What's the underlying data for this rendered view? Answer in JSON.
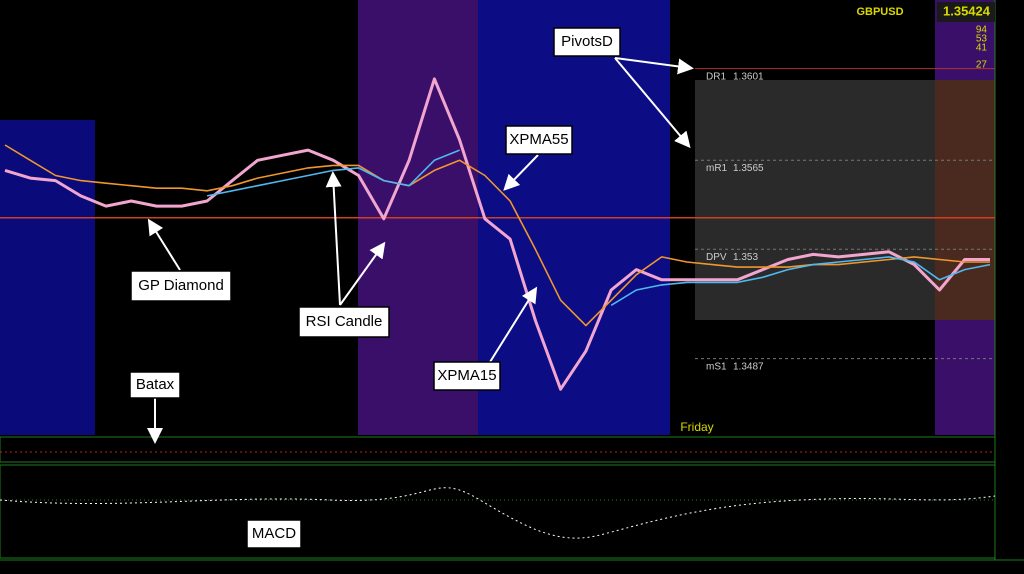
{
  "chart_data": {
    "type": "line",
    "symbol": "GBPUSD",
    "price": 1.35424,
    "counters": [
      "94",
      "53",
      "41",
      "27"
    ],
    "session_label": "Friday",
    "ylim": [
      1.3457,
      1.3628
    ],
    "pivots": [
      {
        "name": "DR1",
        "value": 1.3601
      },
      {
        "name": "mR1",
        "value": 1.3565
      },
      {
        "name": "DPV",
        "value": 1.353
      },
      {
        "name": "mS1",
        "value": 1.3487
      }
    ],
    "series": [
      {
        "color": "#f2a6cf",
        "values": [
          1.3561,
          1.3558,
          1.3557,
          1.3551,
          1.3547,
          1.3549,
          1.3547,
          1.3547,
          1.3549,
          1.3557,
          1.3565,
          1.3567,
          1.3569,
          1.3565,
          1.3559,
          1.3542,
          1.3565,
          1.3597,
          1.3573,
          1.3542,
          1.3534,
          1.3502,
          1.3475,
          1.349,
          1.3514,
          1.3522,
          1.3518,
          1.3518,
          1.3518,
          1.3518,
          1.3522,
          1.3526,
          1.3528,
          1.3527,
          1.3528,
          1.3529,
          1.3524,
          1.3514,
          1.3526,
          1.3526
        ]
      },
      {
        "color": "#f0962e",
        "values": [
          1.3571,
          1.3565,
          1.3559,
          1.3557,
          1.3556,
          1.3555,
          1.3554,
          1.3554,
          1.3553,
          1.3555,
          1.3558,
          1.356,
          1.3562,
          1.3563,
          1.3563,
          1.3557,
          1.3555,
          1.3561,
          1.3565,
          1.3559,
          1.3549,
          1.353,
          1.351,
          1.35,
          1.351,
          1.352,
          1.3527,
          1.3525,
          1.3524,
          1.3523,
          1.3523,
          1.3523,
          1.3524,
          1.3524,
          1.3525,
          1.3526,
          1.3527,
          1.3526,
          1.3525,
          1.3525
        ]
      },
      {
        "color": "#4fb8f0",
        "values": [
          null,
          null,
          null,
          null,
          null,
          null,
          null,
          null,
          1.3551,
          1.3553,
          1.3555,
          1.3557,
          1.3559,
          1.3561,
          1.3562,
          1.3557,
          1.3555,
          1.3565,
          1.3569,
          null,
          null,
          null,
          null,
          null,
          1.3508,
          1.3514,
          1.3516,
          1.3517,
          1.3517,
          1.3517,
          1.3519,
          1.3522,
          1.3524,
          1.3525,
          1.3526,
          1.3527,
          1.3525,
          1.3518,
          1.3522,
          1.3524
        ]
      }
    ],
    "annotations": [
      "PivotsD",
      "XPMA55",
      "GP Diamond",
      "RSI Candle",
      "Batax",
      "XPMA15",
      "MACD"
    ]
  }
}
